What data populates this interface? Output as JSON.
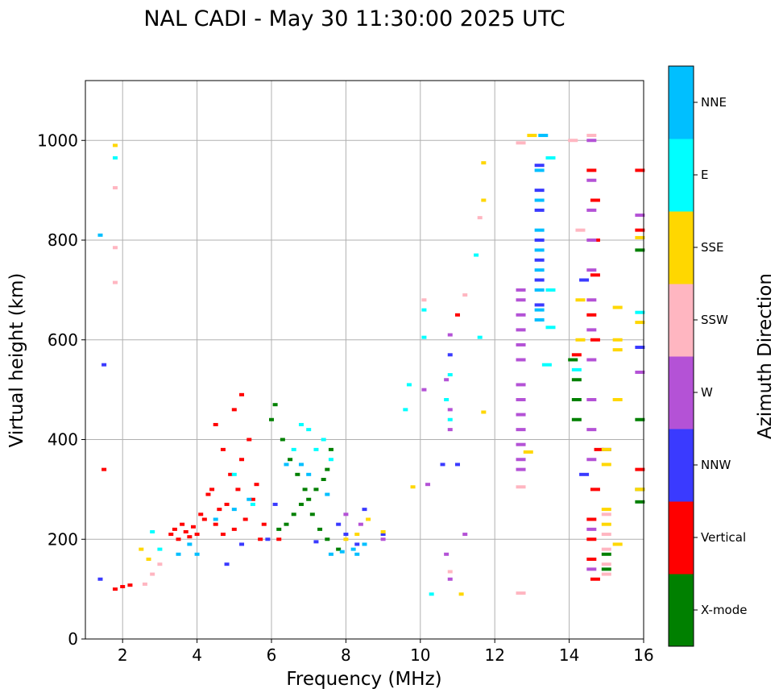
{
  "chart_data": {
    "type": "scatter",
    "title": "NAL CADI - May 30 11:30:00 2025 UTC",
    "xlabel": "Frequency (MHz)",
    "ylabel": "Virtual height (km)",
    "xlim": [
      1,
      16
    ],
    "ylim": [
      0,
      1120
    ],
    "xticks": [
      "2",
      "4",
      "6",
      "8",
      "10",
      "12",
      "14",
      "16"
    ],
    "yticks": [
      "0",
      "200",
      "400",
      "600",
      "800",
      "1000"
    ],
    "grid": true,
    "colorbar": {
      "label": "Azimuth Direction",
      "categories": [
        {
          "name": "X-mode",
          "color": "#008000"
        },
        {
          "name": "Vertical",
          "color": "#ff0000"
        },
        {
          "name": "NNW",
          "color": "#3a3aff"
        },
        {
          "name": "W",
          "color": "#b452d6"
        },
        {
          "name": "SSW",
          "color": "#ffb6c1"
        },
        {
          "name": "SSE",
          "color": "#ffd700"
        },
        {
          "name": "E",
          "color": "#00ffff"
        },
        {
          "name": "NNE",
          "color": "#00bfff"
        }
      ]
    },
    "series": [
      {
        "name": "Vertical",
        "points": [
          [
            1.5,
            340
          ],
          [
            1.8,
            100
          ],
          [
            2.0,
            105
          ],
          [
            2.2,
            108
          ],
          [
            3.3,
            210
          ],
          [
            3.4,
            220
          ],
          [
            3.5,
            200
          ],
          [
            3.6,
            230
          ],
          [
            3.7,
            215
          ],
          [
            3.8,
            205
          ],
          [
            3.9,
            225
          ],
          [
            4.0,
            210
          ],
          [
            4.1,
            250
          ],
          [
            4.2,
            240
          ],
          [
            4.3,
            290
          ],
          [
            4.4,
            300
          ],
          [
            4.5,
            230
          ],
          [
            4.6,
            260
          ],
          [
            4.7,
            210
          ],
          [
            4.8,
            270
          ],
          [
            4.9,
            330
          ],
          [
            5.0,
            220
          ],
          [
            5.1,
            300
          ],
          [
            5.2,
            360
          ],
          [
            5.3,
            240
          ],
          [
            5.4,
            400
          ],
          [
            5.5,
            280
          ],
          [
            5.6,
            310
          ],
          [
            5.7,
            200
          ],
          [
            5.8,
            230
          ],
          [
            4.5,
            430
          ],
          [
            4.7,
            380
          ],
          [
            5.0,
            460
          ],
          [
            5.2,
            490
          ],
          [
            6.2,
            200
          ],
          [
            14.2,
            570
          ],
          [
            14.6,
            940
          ],
          [
            14.7,
            880
          ],
          [
            14.7,
            800
          ],
          [
            14.7,
            730
          ],
          [
            14.6,
            650
          ],
          [
            14.7,
            600
          ],
          [
            14.8,
            380
          ],
          [
            14.7,
            300
          ],
          [
            14.6,
            240
          ],
          [
            14.6,
            200
          ],
          [
            14.6,
            160
          ],
          [
            14.7,
            120
          ],
          [
            15.9,
            940
          ],
          [
            15.9,
            820
          ],
          [
            15.9,
            340
          ],
          [
            11.0,
            650
          ]
        ]
      },
      {
        "name": "X-mode",
        "points": [
          [
            6.2,
            220
          ],
          [
            6.4,
            230
          ],
          [
            6.6,
            250
          ],
          [
            6.8,
            270
          ],
          [
            7.0,
            280
          ],
          [
            7.2,
            300
          ],
          [
            7.4,
            320
          ],
          [
            7.5,
            340
          ],
          [
            6.0,
            440
          ],
          [
            6.1,
            470
          ],
          [
            6.3,
            400
          ],
          [
            6.5,
            360
          ],
          [
            6.7,
            330
          ],
          [
            6.9,
            300
          ],
          [
            7.1,
            250
          ],
          [
            7.3,
            220
          ],
          [
            7.5,
            200
          ],
          [
            7.6,
            380
          ],
          [
            7.8,
            180
          ],
          [
            14.1,
            560
          ],
          [
            14.2,
            520
          ],
          [
            14.2,
            480
          ],
          [
            14.2,
            440
          ],
          [
            15.0,
            170
          ],
          [
            15.0,
            140
          ],
          [
            15.9,
            780
          ],
          [
            15.9,
            440
          ],
          [
            15.9,
            300
          ],
          [
            15.9,
            275
          ]
        ]
      },
      {
        "name": "NNW",
        "points": [
          [
            1.5,
            550
          ],
          [
            1.4,
            120
          ],
          [
            4.8,
            150
          ],
          [
            5.2,
            190
          ],
          [
            5.9,
            200
          ],
          [
            6.1,
            270
          ],
          [
            7.2,
            195
          ],
          [
            7.8,
            230
          ],
          [
            8.0,
            210
          ],
          [
            8.3,
            190
          ],
          [
            8.5,
            260
          ],
          [
            9.0,
            210
          ],
          [
            13.2,
            950
          ],
          [
            13.2,
            900
          ],
          [
            13.2,
            860
          ],
          [
            13.2,
            800
          ],
          [
            13.2,
            760
          ],
          [
            13.2,
            720
          ],
          [
            13.2,
            670
          ],
          [
            14.4,
            720
          ],
          [
            14.4,
            330
          ],
          [
            15.0,
            380
          ],
          [
            15.9,
            585
          ],
          [
            10.8,
            570
          ],
          [
            10.6,
            350
          ],
          [
            11.0,
            350
          ]
        ]
      },
      {
        "name": "W",
        "points": [
          [
            12.7,
            700
          ],
          [
            12.7,
            680
          ],
          [
            12.7,
            650
          ],
          [
            12.7,
            620
          ],
          [
            12.7,
            590
          ],
          [
            12.7,
            560
          ],
          [
            12.7,
            510
          ],
          [
            12.7,
            480
          ],
          [
            12.7,
            450
          ],
          [
            12.7,
            420
          ],
          [
            12.7,
            390
          ],
          [
            12.7,
            360
          ],
          [
            12.7,
            340
          ],
          [
            14.6,
            1000
          ],
          [
            14.6,
            920
          ],
          [
            14.6,
            860
          ],
          [
            14.6,
            800
          ],
          [
            14.6,
            740
          ],
          [
            14.6,
            680
          ],
          [
            14.6,
            620
          ],
          [
            14.6,
            560
          ],
          [
            14.6,
            480
          ],
          [
            14.6,
            420
          ],
          [
            14.6,
            360
          ],
          [
            14.6,
            220
          ],
          [
            14.6,
            140
          ],
          [
            8.0,
            250
          ],
          [
            8.4,
            230
          ],
          [
            9.0,
            200
          ],
          [
            10.8,
            610
          ],
          [
            10.7,
            520
          ],
          [
            10.8,
            460
          ],
          [
            10.8,
            420
          ],
          [
            10.7,
            170
          ],
          [
            10.8,
            120
          ],
          [
            11.2,
            210
          ],
          [
            15.9,
            850
          ],
          [
            15.9,
            535
          ],
          [
            10.1,
            500
          ],
          [
            10.2,
            310
          ]
        ]
      },
      {
        "name": "SSW",
        "points": [
          [
            1.8,
            905
          ],
          [
            1.8,
            785
          ],
          [
            1.8,
            715
          ],
          [
            12.7,
            305
          ],
          [
            12.7,
            995
          ],
          [
            12.7,
            92
          ],
          [
            14.1,
            1000
          ],
          [
            14.3,
            820
          ],
          [
            14.6,
            1010
          ],
          [
            15.0,
            250
          ],
          [
            15.0,
            210
          ],
          [
            15.0,
            180
          ],
          [
            15.0,
            150
          ],
          [
            15.0,
            130
          ],
          [
            11.2,
            690
          ],
          [
            11.6,
            845
          ],
          [
            10.8,
            135
          ],
          [
            10.1,
            680
          ],
          [
            2.6,
            110
          ],
          [
            2.8,
            130
          ],
          [
            3.0,
            150
          ]
        ]
      },
      {
        "name": "SSE",
        "points": [
          [
            1.8,
            990
          ],
          [
            13.0,
            1010
          ],
          [
            14.3,
            600
          ],
          [
            14.3,
            680
          ],
          [
            15.0,
            380
          ],
          [
            15.0,
            350
          ],
          [
            15.0,
            260
          ],
          [
            15.0,
            230
          ],
          [
            15.3,
            665
          ],
          [
            15.3,
            600
          ],
          [
            15.3,
            580
          ],
          [
            15.3,
            480
          ],
          [
            15.3,
            190
          ],
          [
            15.9,
            805
          ],
          [
            15.9,
            635
          ],
          [
            15.9,
            300
          ],
          [
            8.0,
            200
          ],
          [
            8.3,
            210
          ],
          [
            8.6,
            240
          ],
          [
            9.0,
            215
          ],
          [
            12.9,
            375
          ],
          [
            11.7,
            955
          ],
          [
            11.7,
            880
          ],
          [
            11.7,
            455
          ],
          [
            11.1,
            90
          ],
          [
            9.8,
            305
          ],
          [
            2.5,
            180
          ],
          [
            2.7,
            160
          ]
        ]
      },
      {
        "name": "E",
        "points": [
          [
            1.8,
            965
          ],
          [
            13.5,
            965
          ],
          [
            13.5,
            700
          ],
          [
            13.5,
            625
          ],
          [
            13.4,
            550
          ],
          [
            6.8,
            430
          ],
          [
            7.0,
            420
          ],
          [
            7.2,
            380
          ],
          [
            7.4,
            400
          ],
          [
            7.6,
            360
          ],
          [
            6.6,
            380
          ],
          [
            5.0,
            330
          ],
          [
            5.5,
            270
          ],
          [
            14.2,
            540
          ],
          [
            15.9,
            655
          ],
          [
            11.5,
            770
          ],
          [
            11.6,
            605
          ],
          [
            10.1,
            660
          ],
          [
            10.1,
            605
          ],
          [
            10.7,
            480
          ],
          [
            10.8,
            440
          ],
          [
            10.8,
            530
          ],
          [
            9.7,
            510
          ],
          [
            9.6,
            460
          ],
          [
            10.3,
            90
          ],
          [
            2.8,
            215
          ],
          [
            3.0,
            180
          ]
        ]
      },
      {
        "name": "NNE",
        "points": [
          [
            1.4,
            810
          ],
          [
            13.3,
            1010
          ],
          [
            13.2,
            940
          ],
          [
            13.2,
            880
          ],
          [
            13.2,
            820
          ],
          [
            13.2,
            780
          ],
          [
            13.2,
            740
          ],
          [
            13.2,
            700
          ],
          [
            13.2,
            660
          ],
          [
            13.2,
            640
          ],
          [
            6.4,
            350
          ],
          [
            6.8,
            350
          ],
          [
            7.0,
            330
          ],
          [
            7.5,
            290
          ],
          [
            7.6,
            170
          ],
          [
            7.9,
            175
          ],
          [
            8.2,
            180
          ],
          [
            8.3,
            170
          ],
          [
            8.5,
            190
          ],
          [
            4.5,
            240
          ],
          [
            5.0,
            260
          ],
          [
            5.4,
            280
          ],
          [
            3.5,
            170
          ],
          [
            3.8,
            190
          ],
          [
            4.0,
            170
          ]
        ]
      }
    ],
    "ticks_mark": "—"
  }
}
